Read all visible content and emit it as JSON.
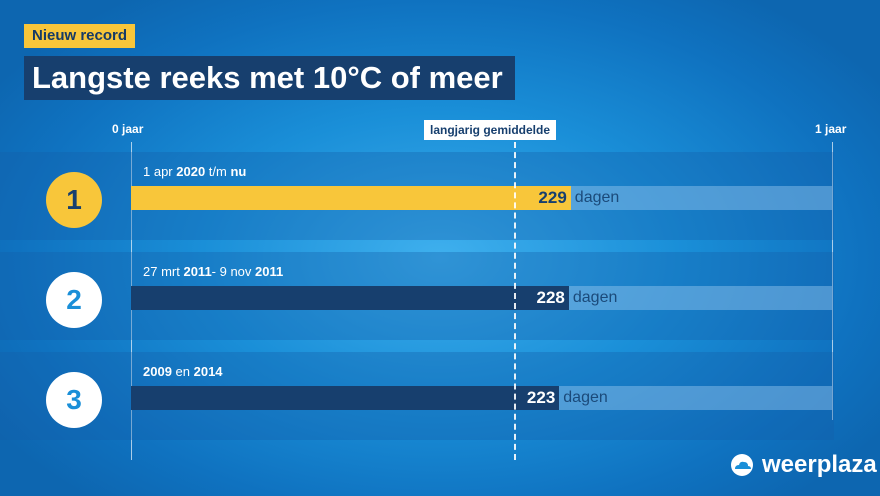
{
  "header": {
    "badge": "Nieuw record",
    "title": "Langste reeks met 10°C of meer"
  },
  "chart_data": {
    "type": "bar",
    "orientation": "horizontal",
    "title": "Langste reeks met 10°C of meer",
    "axis": {
      "start_label": "0 jaar",
      "end_label": "1 jaar",
      "range_days": [
        0,
        365
      ]
    },
    "reference_line": {
      "label": "langjarig gemiddelde",
      "value_days": 200
    },
    "unit": "dagen",
    "colors": {
      "record": "#f8c63a",
      "other": "#173f6e",
      "track": "#8fc3ec"
    },
    "series": [
      {
        "rank": "1",
        "period": [
          {
            "text": "1 apr ",
            "bold": false
          },
          {
            "text": "2020",
            "bold": true
          },
          {
            "text": " t/m ",
            "bold": false
          },
          {
            "text": "nu",
            "bold": true
          }
        ],
        "value": 229,
        "record": true
      },
      {
        "rank": "2",
        "period": [
          {
            "text": "27  mrt ",
            "bold": false
          },
          {
            "text": "2011",
            "bold": true
          },
          {
            "text": "-  9 nov ",
            "bold": false
          },
          {
            "text": "2011",
            "bold": true
          }
        ],
        "value": 228,
        "record": false
      },
      {
        "rank": "3",
        "period": [
          {
            "text": "2009",
            "bold": true
          },
          {
            "text": " en ",
            "bold": false
          },
          {
            "text": "2014",
            "bold": true
          }
        ],
        "value": 223,
        "record": false
      }
    ]
  },
  "brand": {
    "name": "weerplaza",
    "icon": "cloud-icon"
  }
}
